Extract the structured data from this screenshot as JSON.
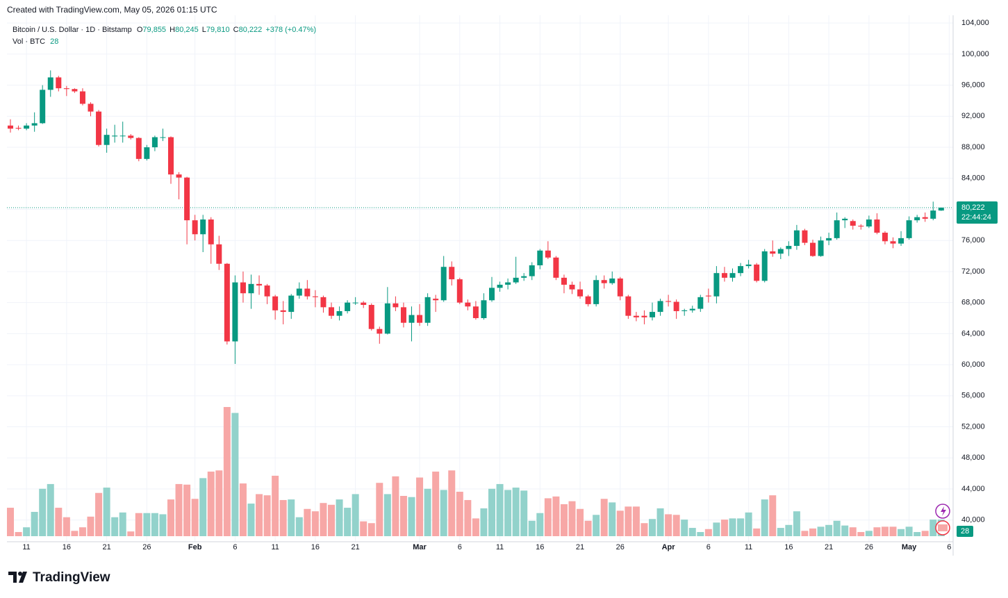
{
  "header": "Created with TradingView.com, May 05, 2026 01:15 UTC",
  "legend": {
    "symbol": "Bitcoin / U.S. Dollar · 1D · Bitstamp",
    "fields": [
      {
        "key": "O",
        "value": "79,855"
      },
      {
        "key": "H",
        "value": "80,245"
      },
      {
        "key": "L",
        "value": "79,810"
      },
      {
        "key": "C",
        "value": "80,222"
      }
    ],
    "change": "+378 (+0.47%)",
    "volume_name": "Vol · BTC",
    "volume_value": "28"
  },
  "price_label": {
    "price": "80,222",
    "countdown": "22:44:24"
  },
  "volume_label": "28",
  "brand": "TradingView",
  "chart_data": {
    "type": "candlestick",
    "up_color": "#089981",
    "down_color": "#f23645",
    "volume_up_color": "#92d2cb",
    "volume_down_color": "#f7a7a6",
    "grid": true,
    "ylim": [
      37200,
      105000
    ],
    "yticks": [
      {
        "value": 104000,
        "label": "104,000"
      },
      {
        "value": 100000,
        "label": "100,000"
      },
      {
        "value": 96000,
        "label": "96,000"
      },
      {
        "value": 92000,
        "label": "92,000"
      },
      {
        "value": 88000,
        "label": "88,000"
      },
      {
        "value": 84000,
        "label": "84,000"
      },
      {
        "value": 80000,
        "label": "80,000"
      },
      {
        "value": 76000,
        "label": "76,000"
      },
      {
        "value": 72000,
        "label": "72,000"
      },
      {
        "value": 68000,
        "label": "68,000"
      },
      {
        "value": 64000,
        "label": "64,000"
      },
      {
        "value": 60000,
        "label": "60,000"
      },
      {
        "value": 56000,
        "label": "56,000"
      },
      {
        "value": 52000,
        "label": "52,000"
      },
      {
        "value": 48000,
        "label": "48,000"
      },
      {
        "value": 44000,
        "label": "44,000"
      },
      {
        "value": 40000,
        "label": "40,000"
      }
    ],
    "categories": [
      null,
      null,
      "11",
      null,
      null,
      null,
      null,
      "16",
      null,
      null,
      null,
      null,
      "21",
      null,
      null,
      null,
      null,
      "26",
      null,
      null,
      null,
      null,
      null,
      "Feb",
      null,
      null,
      null,
      null,
      "6",
      null,
      null,
      null,
      null,
      "11",
      null,
      null,
      null,
      null,
      "16",
      null,
      null,
      null,
      null,
      "21",
      null,
      null,
      null,
      null,
      null,
      null,
      null,
      "Mar",
      null,
      null,
      null,
      null,
      "6",
      null,
      null,
      null,
      null,
      "11",
      null,
      null,
      null,
      null,
      "16",
      null,
      null,
      null,
      null,
      "21",
      null,
      null,
      null,
      null,
      "26",
      null,
      null,
      null,
      null,
      null,
      "Apr",
      null,
      null,
      null,
      null,
      "6",
      null,
      null,
      null,
      null,
      "11",
      null,
      null,
      null,
      null,
      "16",
      null,
      null,
      null,
      null,
      "21",
      null,
      null,
      null,
      null,
      "26",
      null,
      null,
      null,
      null,
      "May",
      null,
      null,
      null,
      null,
      "6"
    ],
    "open": [
      90800,
      90500,
      90400,
      90800,
      91100,
      95400,
      97000,
      95600,
      95500,
      95200,
      93600,
      92600,
      88300,
      89400,
      89500,
      89500,
      89200,
      86500,
      88000,
      89300,
      89300,
      84500,
      84100,
      78600,
      76800,
      78700,
      75500,
      73000,
      63000,
      70600,
      69200,
      70400,
      70200,
      68800,
      67000,
      66800,
      68900,
      69800,
      68800,
      68700,
      67400,
      66300,
      66900,
      68000,
      68000,
      67700,
      64600,
      64000,
      67900,
      67400,
      65400,
      66400,
      65400,
      68500,
      68300,
      72600,
      71000,
      68000,
      67500,
      66000,
      68300,
      69900,
      70300,
      70600,
      71200,
      71400,
      72800,
      74700,
      73800,
      71200,
      70300,
      69700,
      68800,
      67800,
      70900,
      70500,
      71100,
      68800,
      66300,
      66300,
      66100,
      66800,
      68200,
      68100,
      66900,
      67000,
      67200,
      68900,
      68800,
      71800,
      71200,
      71800,
      72700,
      72900,
      70800,
      74600,
      74300,
      74900,
      75300,
      77300,
      75700,
      74000,
      76000,
      76300,
      78600,
      78500,
      77900,
      77800,
      78700,
      77000,
      75900,
      75600,
      76300,
      78600,
      79000,
      78800,
      79855,
      null
    ],
    "high": [
      91600,
      90800,
      91100,
      92500,
      96000,
      97900,
      97200,
      95900,
      95600,
      95600,
      93800,
      92800,
      90400,
      90900,
      91300,
      89700,
      89300,
      88300,
      89500,
      90400,
      89400,
      84800,
      84200,
      79300,
      79300,
      79000,
      76600,
      73100,
      71500,
      72000,
      71600,
      71500,
      70400,
      69000,
      68200,
      69100,
      70600,
      70900,
      69600,
      68900,
      68000,
      67500,
      68300,
      68700,
      68200,
      67900,
      64900,
      70000,
      68800,
      68000,
      67500,
      67800,
      69200,
      69000,
      74000,
      73300,
      71200,
      68400,
      68200,
      69200,
      71300,
      70700,
      71100,
      73900,
      71800,
      73200,
      74900,
      75900,
      74000,
      71600,
      70700,
      70700,
      69000,
      71500,
      71500,
      72000,
      71300,
      69000,
      66800,
      67000,
      68000,
      68500,
      69000,
      68400,
      67200,
      67600,
      69000,
      69800,
      72700,
      72600,
      72400,
      73100,
      73500,
      73100,
      74900,
      76000,
      75100,
      75900,
      78000,
      77500,
      76100,
      76500,
      77000,
      79600,
      79000,
      78700,
      78100,
      79200,
      79500,
      77200,
      76400,
      77200,
      79100,
      79300,
      79600,
      81000,
      80245,
      null
    ],
    "low": [
      89900,
      90200,
      90200,
      90000,
      91000,
      94500,
      95200,
      94600,
      95000,
      93400,
      92000,
      88100,
      87300,
      88600,
      88600,
      89000,
      86200,
      86300,
      87500,
      88800,
      83300,
      81300,
      75500,
      76000,
      74500,
      73000,
      72200,
      62600,
      60100,
      68000,
      67200,
      69000,
      67800,
      65800,
      65200,
      65900,
      68500,
      68400,
      67400,
      66700,
      65900,
      65700,
      66600,
      67700,
      67300,
      64400,
      62700,
      63900,
      66900,
      64800,
      63000,
      65000,
      65000,
      66800,
      68100,
      70200,
      67800,
      67000,
      65800,
      65800,
      68100,
      69400,
      69700,
      70400,
      70800,
      70900,
      72300,
      73600,
      70900,
      69200,
      69100,
      68500,
      67500,
      67500,
      69800,
      70300,
      68300,
      65900,
      65600,
      65200,
      65700,
      66300,
      67500,
      65900,
      66300,
      66700,
      66800,
      68000,
      67900,
      70700,
      70700,
      71400,
      72400,
      70600,
      70600,
      73900,
      73600,
      74000,
      74800,
      75400,
      73900,
      73900,
      75400,
      76100,
      77600,
      77400,
      77400,
      77600,
      76800,
      75500,
      75000,
      75300,
      76100,
      78300,
      78400,
      78600,
      79810,
      null
    ],
    "close": [
      90400,
      90400,
      90800,
      91100,
      95400,
      97000,
      95600,
      95500,
      95200,
      93600,
      92600,
      88300,
      89600,
      89500,
      89500,
      89200,
      86500,
      88000,
      89300,
      89300,
      84500,
      84100,
      78600,
      76800,
      78700,
      75500,
      73000,
      63000,
      70600,
      69200,
      70400,
      70200,
      68800,
      67000,
      66800,
      68900,
      69800,
      68800,
      68700,
      67400,
      66300,
      66900,
      68000,
      68000,
      67700,
      64600,
      64000,
      67900,
      67400,
      65400,
      66400,
      65400,
      68700,
      68300,
      72600,
      71000,
      68000,
      67500,
      66000,
      68300,
      69900,
      70300,
      70600,
      71200,
      71400,
      72800,
      74700,
      73800,
      71200,
      70300,
      69700,
      68800,
      67800,
      70900,
      70500,
      71100,
      68800,
      66300,
      66100,
      66100,
      66800,
      68200,
      68100,
      66900,
      67000,
      67200,
      68700,
      68800,
      71800,
      71200,
      71800,
      72700,
      72900,
      70800,
      74600,
      74300,
      74900,
      75300,
      77300,
      75700,
      74000,
      76000,
      76300,
      78600,
      78800,
      77900,
      77800,
      78700,
      77000,
      75900,
      75600,
      76300,
      78600,
      79000,
      78800,
      79855,
      80222,
      null
    ],
    "volume": [
      48,
      7,
      15,
      41,
      80,
      88,
      48,
      32,
      9,
      15,
      33,
      73,
      82,
      32,
      40,
      8,
      39,
      39,
      39,
      37,
      62,
      88,
      87,
      63,
      98,
      109,
      111,
      218,
      208,
      89,
      55,
      71,
      69,
      102,
      61,
      62,
      32,
      46,
      42,
      56,
      53,
      62,
      48,
      71,
      25,
      22,
      90,
      71,
      101,
      68,
      66,
      99,
      80,
      109,
      78,
      111,
      75,
      61,
      30,
      47,
      80,
      88,
      78,
      82,
      77,
      26,
      39,
      64,
      67,
      54,
      59,
      46,
      26,
      36,
      63,
      57,
      43,
      50,
      50,
      22,
      29,
      47,
      37,
      36,
      28,
      14,
      7,
      12,
      23,
      28,
      30,
      30,
      40,
      13,
      62,
      69,
      14,
      19,
      42,
      9,
      13,
      16,
      19,
      26,
      18,
      15,
      7,
      9,
      15,
      16,
      16,
      12,
      16,
      7,
      9,
      28,
      28,
      null
    ]
  }
}
